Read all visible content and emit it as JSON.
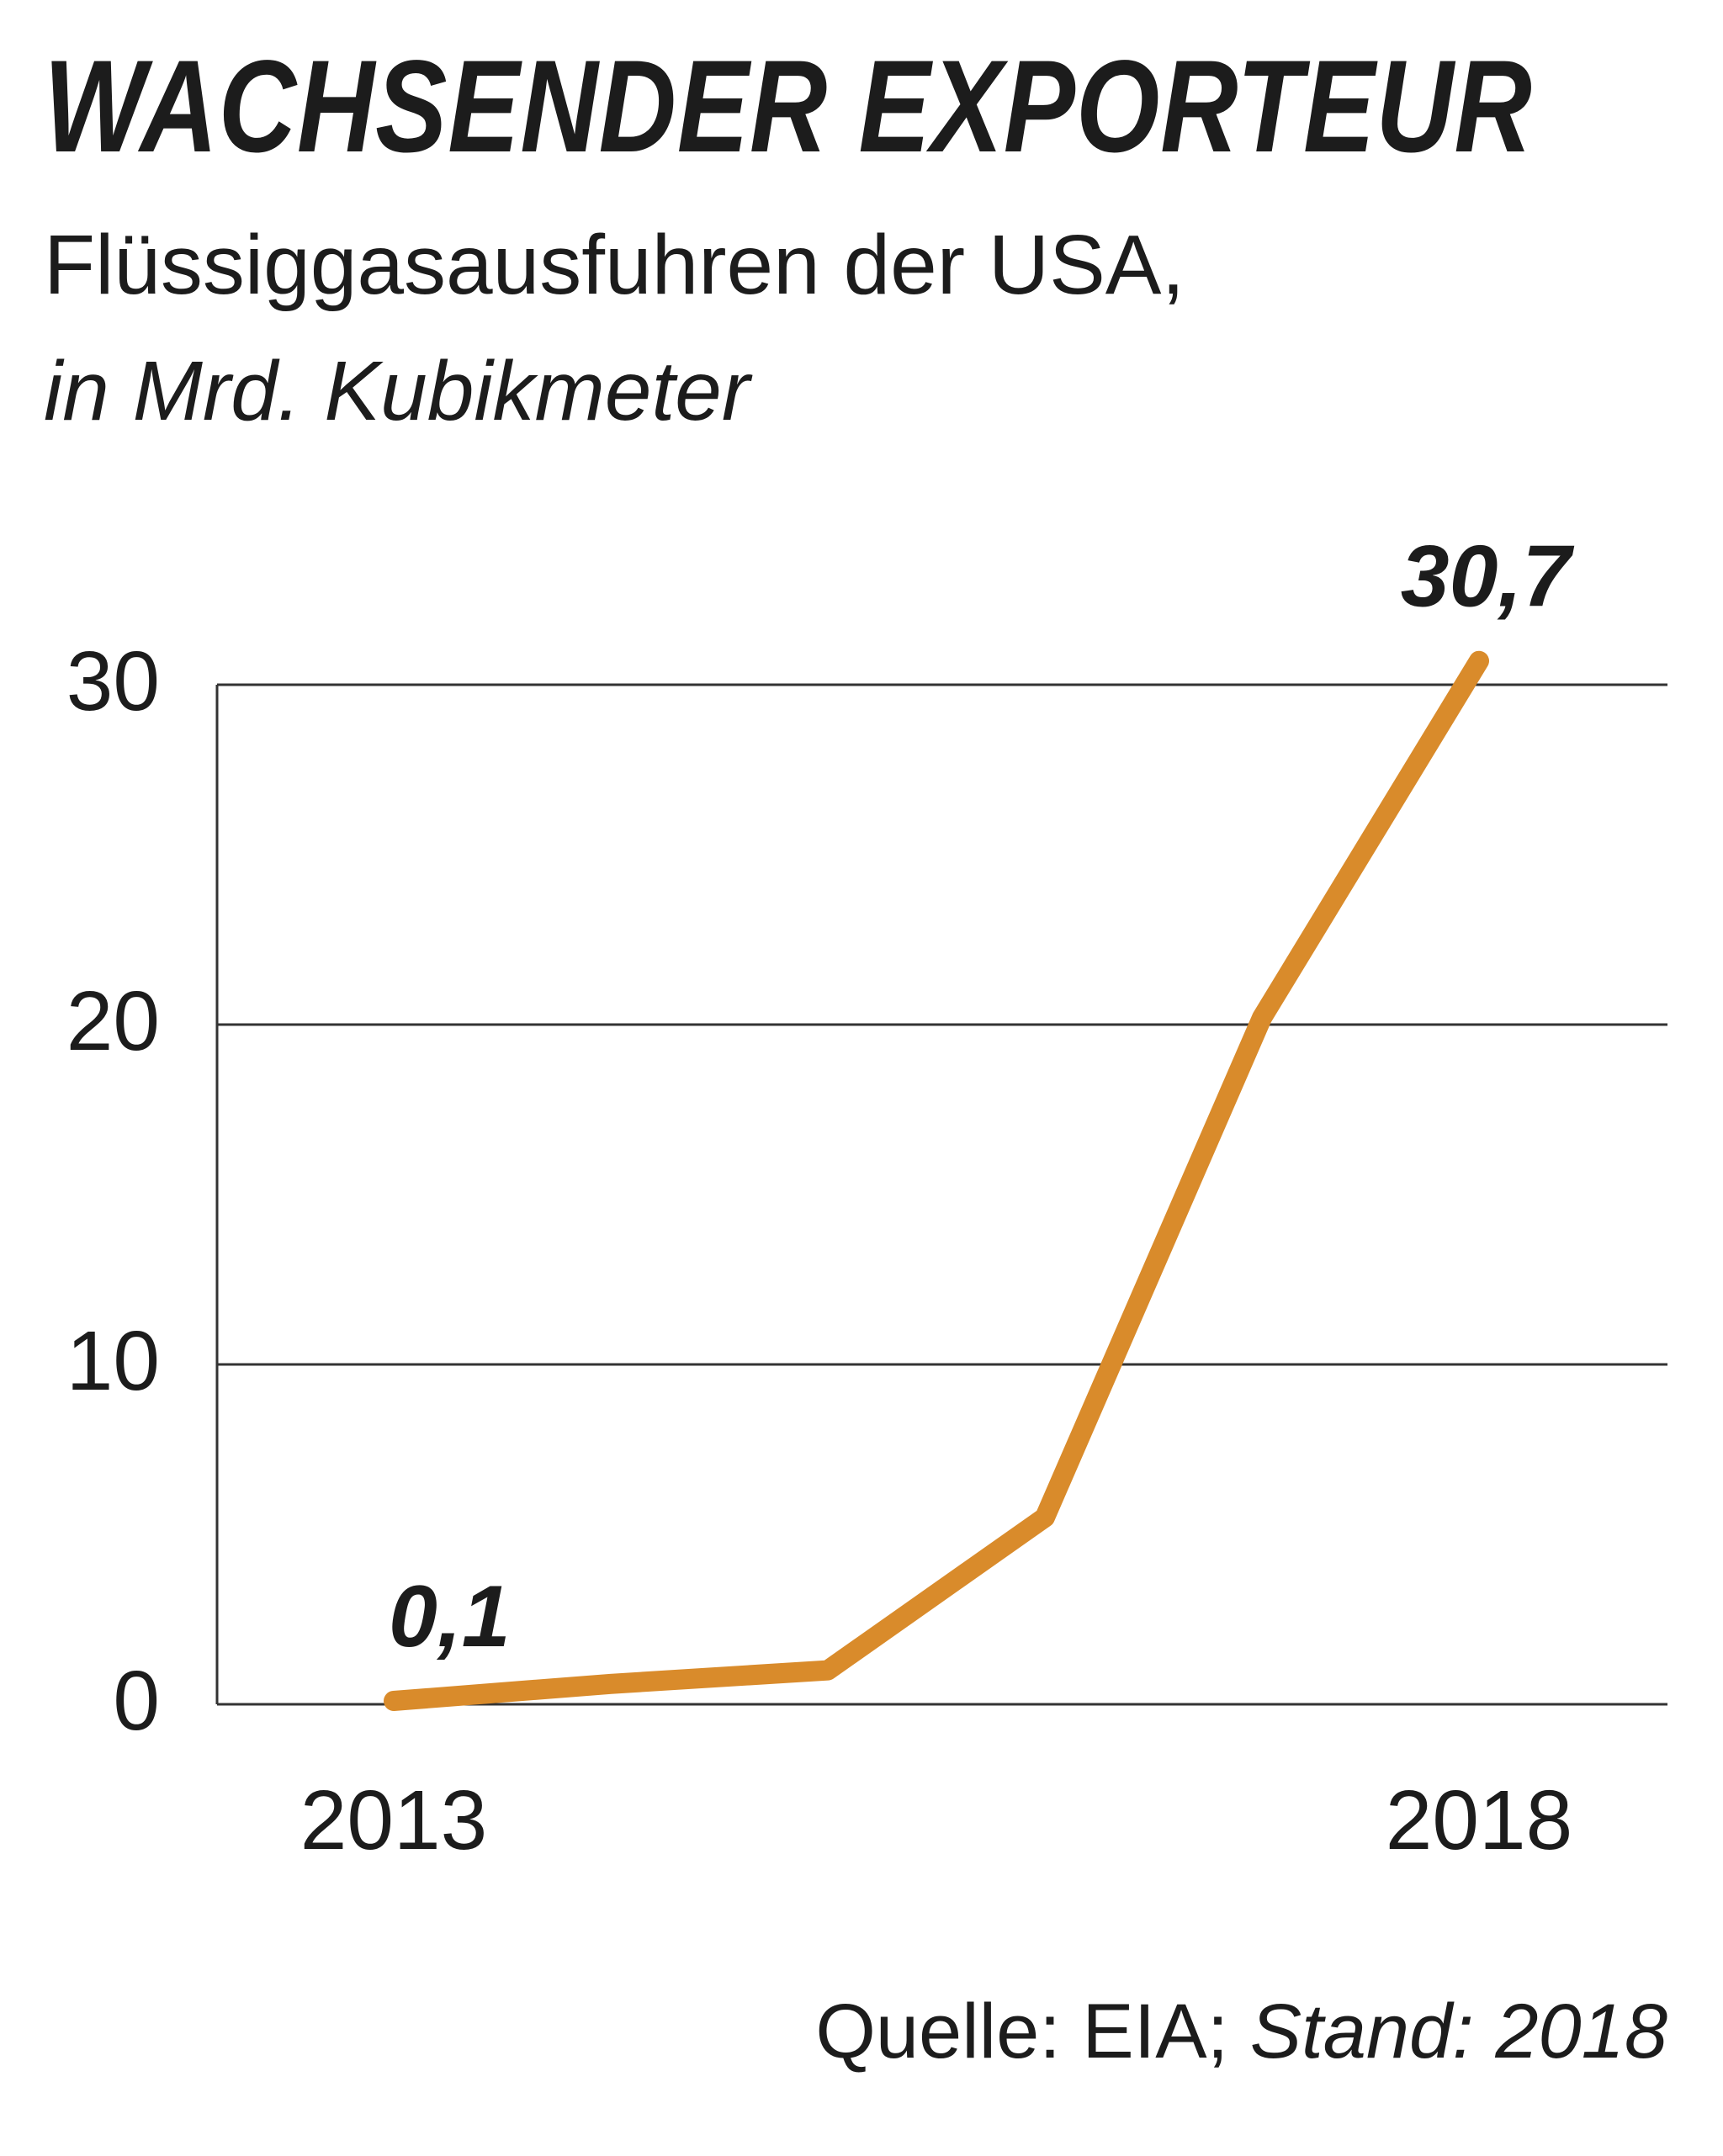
{
  "title": "WACHSENDER EXPORTEUR",
  "subtitle": "Flüssiggasausfuhren der USA,",
  "unit": "in Mrd. Kubikmeter",
  "source": {
    "label": "Quelle: EIA;",
    "stand": "Stand: 2018"
  },
  "chart_data": {
    "type": "line",
    "x": [
      2013,
      2014,
      2015,
      2016,
      2017,
      2018
    ],
    "x_tick_labels": [
      "2013",
      "",
      "",
      "",
      "",
      "2018"
    ],
    "series": [
      {
        "values": [
          0.1,
          0.6,
          1.0,
          5.5,
          20.2,
          30.7
        ],
        "color": "#d98b2b"
      }
    ],
    "annotations": [
      {
        "x": 2013,
        "label": "0,1"
      },
      {
        "x": 2018,
        "label": "30,7"
      }
    ],
    "ylim": [
      0,
      30
    ],
    "y_ticks": [
      0,
      10,
      20,
      30
    ],
    "y_tick_labels": [
      "0",
      "10",
      "20",
      "30"
    ],
    "grid": "horizontal",
    "axis_color": "#333333"
  }
}
